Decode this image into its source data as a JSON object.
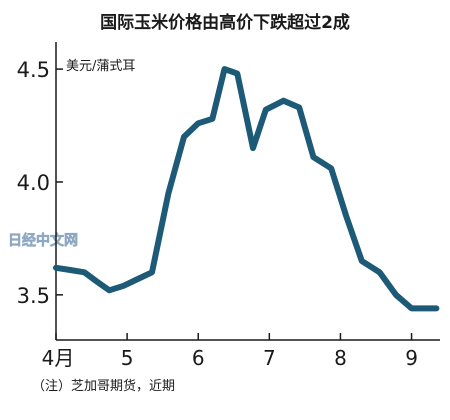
{
  "chart_data": {
    "type": "line",
    "title": "国际玉米价格由高价下跌超过2成",
    "unit_label": "美元/蒲式耳",
    "note": "（注）芝加哥期货，近期",
    "watermark": "日经中文网",
    "ylim": [
      3.3,
      4.62
    ],
    "yticks": [
      {
        "value": 3.5,
        "label": "3.5"
      },
      {
        "value": 4.0,
        "label": "4.0"
      },
      {
        "value": 4.5,
        "label": "4.5"
      }
    ],
    "xlim": [
      4.0,
      9.4
    ],
    "xticks": [
      {
        "value": 4,
        "label": "4月"
      },
      {
        "value": 5,
        "label": "5"
      },
      {
        "value": 6,
        "label": "6"
      },
      {
        "value": 7,
        "label": "7"
      },
      {
        "value": 8,
        "label": "8"
      },
      {
        "value": 9,
        "label": "9"
      }
    ],
    "grid": false,
    "line_color": "#1d5a78",
    "series": [
      {
        "x": [
          4.0,
          4.2,
          4.4,
          4.57,
          4.75,
          4.95,
          5.15,
          5.35,
          5.58,
          5.8,
          6.0,
          6.2,
          6.37,
          6.55,
          6.77,
          6.95,
          7.2,
          7.42,
          7.62,
          7.87,
          8.08,
          8.3,
          8.55,
          8.78,
          9.0,
          9.18,
          9.35
        ],
        "y": [
          3.62,
          3.61,
          3.6,
          3.56,
          3.52,
          3.54,
          3.57,
          3.6,
          3.95,
          4.2,
          4.26,
          4.28,
          4.5,
          4.48,
          4.15,
          4.32,
          4.36,
          4.33,
          4.11,
          4.06,
          3.85,
          3.65,
          3.6,
          3.5,
          3.44,
          3.44,
          3.44
        ]
      }
    ]
  }
}
